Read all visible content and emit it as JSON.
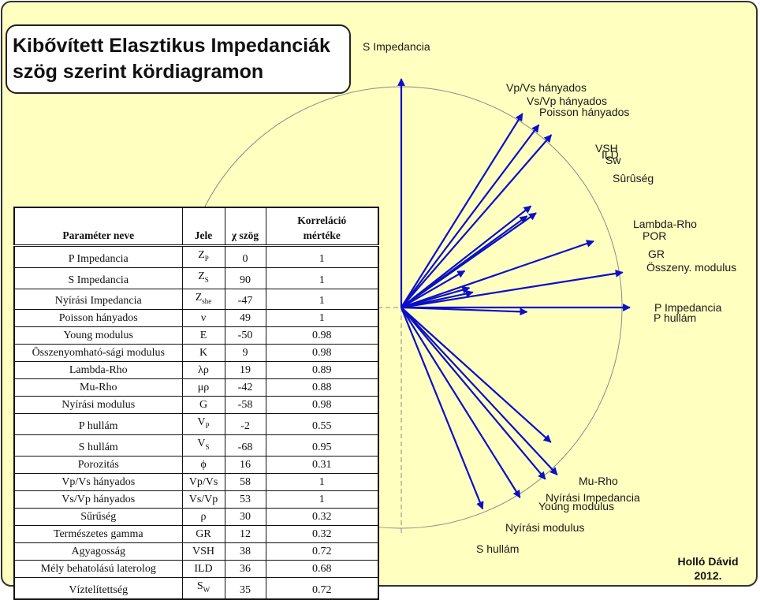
{
  "title": {
    "line1": "Kibővített Elasztikus Impedanciák",
    "line2": "szög szerint kördiagramon"
  },
  "author": {
    "name": "Holló Dávid",
    "year": "2012."
  },
  "colors": {
    "background": "#FFFFC0",
    "arrow": "#0A0FC8",
    "circle": "#888888",
    "label": "#1a1a1a"
  },
  "table": {
    "headers": {
      "name": "Paraméter neve",
      "symbol": "Jele",
      "angle": "χ szög",
      "corr_line1": "Korreláció",
      "corr_line2": "mértéke"
    },
    "rows": [
      {
        "name": "P Impedancia",
        "symbol": "ZP",
        "angle": "0",
        "corr": "1"
      },
      {
        "name": "S Impedancia",
        "symbol": "ZS",
        "angle": "90",
        "corr": "1"
      },
      {
        "name": "Nyírási Impedancia",
        "symbol": "Zshe",
        "angle": "-47",
        "corr": "1"
      },
      {
        "name": "Poisson hányados",
        "symbol": "ν",
        "angle": "49",
        "corr": "1"
      },
      {
        "name": "Young modulus",
        "symbol": "E",
        "angle": "-50",
        "corr": "0.98"
      },
      {
        "name": "Összenyomható-sági modulus",
        "symbol": "K",
        "angle": "9",
        "corr": "0.98"
      },
      {
        "name": "Lambda-Rho",
        "symbol": "λρ",
        "angle": "19",
        "corr": "0.89"
      },
      {
        "name": "Mu-Rho",
        "symbol": "μρ",
        "angle": "-42",
        "corr": "0.88"
      },
      {
        "name": "Nyírási modulus",
        "symbol": "G",
        "angle": "-58",
        "corr": "0.98"
      },
      {
        "name": "P hullám",
        "symbol": "VP",
        "angle": "-2",
        "corr": "0.55"
      },
      {
        "name": "S hullám",
        "symbol": "VS",
        "angle": "-68",
        "corr": "0.95"
      },
      {
        "name": "Porozitás",
        "symbol": "ϕ",
        "angle": "16",
        "corr": "0.31"
      },
      {
        "name": "Vp/Vs hányados",
        "symbol": "Vp/Vs",
        "angle": "58",
        "corr": "1"
      },
      {
        "name": "Vs/Vp hányados",
        "symbol": "Vs/Vp",
        "angle": "53",
        "corr": "1"
      },
      {
        "name": "Sűrűség",
        "symbol": "ρ",
        "angle": "30",
        "corr": "0.32"
      },
      {
        "name": "Természetes gamma",
        "symbol": "GR",
        "angle": "12",
        "corr": "0.32"
      },
      {
        "name": "Agyagosság",
        "symbol": "VSH",
        "angle": "38",
        "corr": "0.72"
      },
      {
        "name": "Mély behatolású laterolog",
        "symbol": "ILD",
        "angle": "36",
        "corr": "0.68"
      },
      {
        "name": "Víztelítettség",
        "symbol": "SW",
        "angle": "35",
        "corr": "0.72"
      }
    ]
  },
  "chart_data": {
    "type": "polar-vector",
    "angle_range_deg": [
      -90,
      90
    ],
    "vectors": [
      {
        "label": "P Impedancia",
        "angle": 0,
        "corr": 1
      },
      {
        "label": "S Impedancia",
        "angle": 90,
        "corr": 1
      },
      {
        "label": "Nyírási Impedancia",
        "angle": -47,
        "corr": 1
      },
      {
        "label": "Poisson hányados",
        "angle": 49,
        "corr": 1
      },
      {
        "label": "Young modulus",
        "angle": -50,
        "corr": 0.98
      },
      {
        "label": "Összeny. modulus",
        "angle": 9,
        "corr": 0.98
      },
      {
        "label": "Lambda-Rho",
        "angle": 19,
        "corr": 0.89
      },
      {
        "label": "Mu-Rho",
        "angle": -42,
        "corr": 0.88
      },
      {
        "label": "Nyírási modulus",
        "angle": -58,
        "corr": 0.98
      },
      {
        "label": "P hullám",
        "angle": -2,
        "corr": 0.55
      },
      {
        "label": "S hullám",
        "angle": -68,
        "corr": 0.95
      },
      {
        "label": "POR",
        "angle": 16,
        "corr": 0.31
      },
      {
        "label": "Vp/Vs hányados",
        "angle": 58,
        "corr": 1
      },
      {
        "label": "Vs/Vp hányados",
        "angle": 53,
        "corr": 1
      },
      {
        "label": "Sûrûség",
        "angle": 30,
        "corr": 0.32
      },
      {
        "label": "GR",
        "angle": 12,
        "corr": 0.32
      },
      {
        "label": "VSH",
        "angle": 38,
        "corr": 0.72
      },
      {
        "label": "ILD",
        "angle": 36,
        "corr": 0.68
      },
      {
        "label": "Sw",
        "angle": 35,
        "corr": 0.72
      }
    ]
  }
}
